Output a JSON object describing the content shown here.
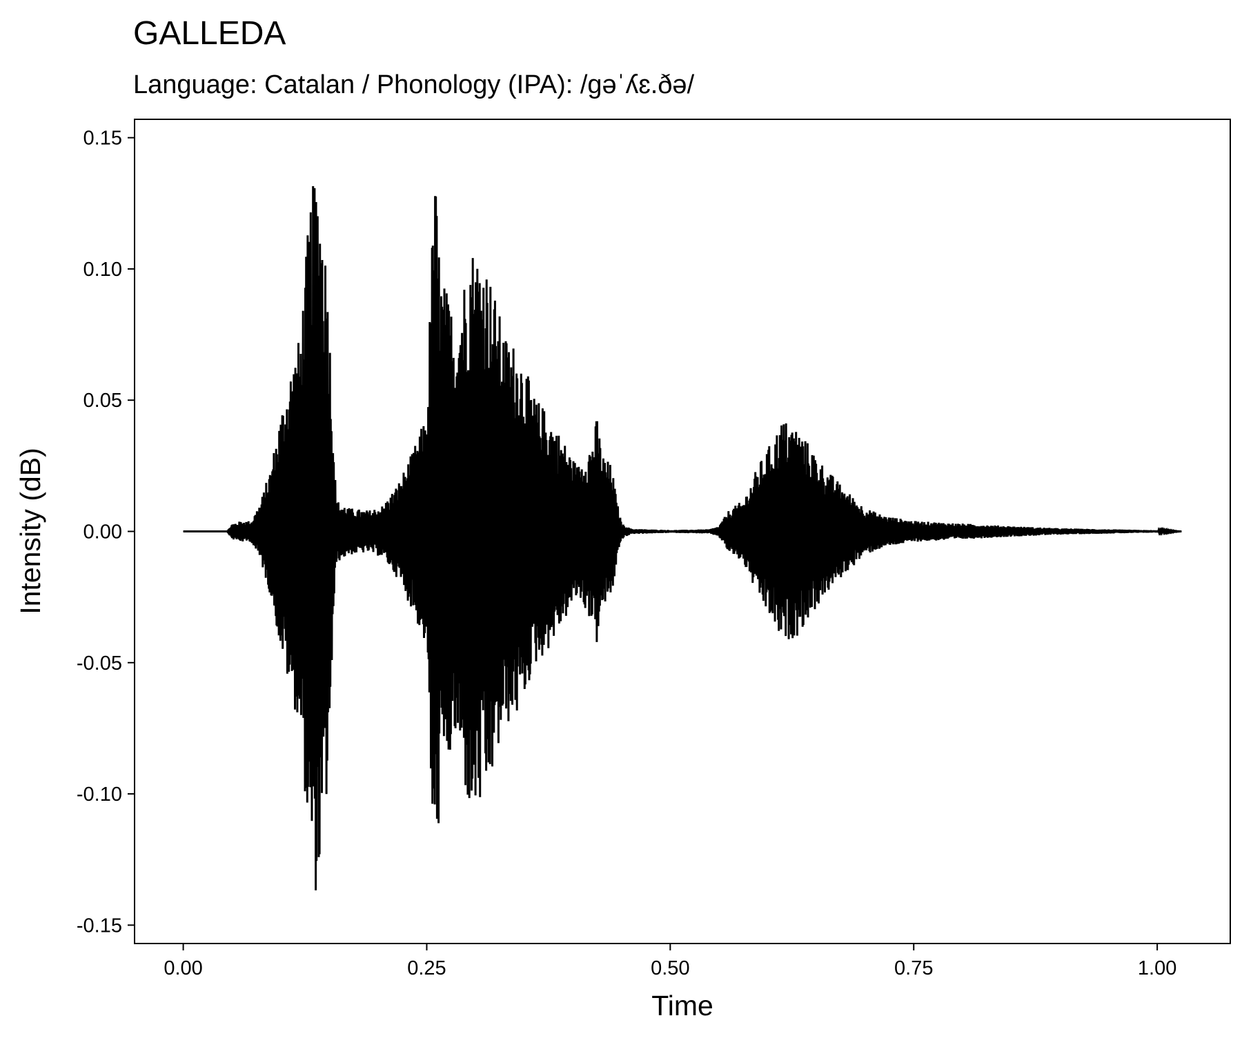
{
  "chart_data": {
    "type": "line",
    "title": "GALLEDA",
    "subtitle": "Language: Catalan / Phonology (IPA): /ɡəˈʎɛ.ðə/",
    "xlabel": "Time",
    "ylabel": "Intensity (dB)",
    "xlim": [
      -0.05,
      1.075
    ],
    "ylim": [
      -0.157,
      0.157
    ],
    "x_ticks": [
      {
        "value": 0.0,
        "label": "0.00"
      },
      {
        "value": 0.25,
        "label": "0.25"
      },
      {
        "value": 0.5,
        "label": "0.50"
      },
      {
        "value": 0.75,
        "label": "0.75"
      },
      {
        "value": 1.0,
        "label": "1.00"
      }
    ],
    "y_ticks": [
      {
        "value": 0.15,
        "label": "0.15"
      },
      {
        "value": 0.1,
        "label": "0.10"
      },
      {
        "value": 0.05,
        "label": "0.05"
      },
      {
        "value": 0.0,
        "label": "0.00"
      },
      {
        "value": -0.05,
        "label": "-0.05"
      },
      {
        "value": -0.1,
        "label": "-0.10"
      },
      {
        "value": -0.15,
        "label": "-0.15"
      }
    ],
    "grid": false,
    "legend": "none",
    "series_color": "#000000",
    "series": [
      {
        "duration": 1.025,
        "envelope": [
          [
            0.0,
            0.0
          ],
          [
            0.045,
            0.0
          ],
          [
            0.05,
            0.003
          ],
          [
            0.06,
            0.004
          ],
          [
            0.07,
            0.004
          ],
          [
            0.08,
            0.012
          ],
          [
            0.09,
            0.025
          ],
          [
            0.1,
            0.045
          ],
          [
            0.11,
            0.062
          ],
          [
            0.12,
            0.075
          ],
          [
            0.125,
            0.1
          ],
          [
            0.13,
            0.125
          ],
          [
            0.137,
            0.14
          ],
          [
            0.142,
            0.125
          ],
          [
            0.148,
            0.1
          ],
          [
            0.152,
            0.06
          ],
          [
            0.157,
            0.012
          ],
          [
            0.17,
            0.009
          ],
          [
            0.19,
            0.008
          ],
          [
            0.205,
            0.01
          ],
          [
            0.22,
            0.018
          ],
          [
            0.235,
            0.03
          ],
          [
            0.25,
            0.045
          ],
          [
            0.258,
            0.142
          ],
          [
            0.264,
            0.1
          ],
          [
            0.28,
            0.08
          ],
          [
            0.295,
            0.11
          ],
          [
            0.31,
            0.105
          ],
          [
            0.33,
            0.075
          ],
          [
            0.345,
            0.07
          ],
          [
            0.36,
            0.052
          ],
          [
            0.375,
            0.045
          ],
          [
            0.39,
            0.035
          ],
          [
            0.405,
            0.025
          ],
          [
            0.42,
            0.035
          ],
          [
            0.425,
            0.044
          ],
          [
            0.43,
            0.03
          ],
          [
            0.44,
            0.025
          ],
          [
            0.445,
            0.012
          ],
          [
            0.45,
            0.003
          ],
          [
            0.46,
            0.001
          ],
          [
            0.5,
            0.0005
          ],
          [
            0.54,
            0.0008
          ],
          [
            0.55,
            0.002
          ],
          [
            0.56,
            0.008
          ],
          [
            0.575,
            0.012
          ],
          [
            0.59,
            0.025
          ],
          [
            0.605,
            0.035
          ],
          [
            0.615,
            0.043
          ],
          [
            0.63,
            0.04
          ],
          [
            0.645,
            0.032
          ],
          [
            0.66,
            0.024
          ],
          [
            0.68,
            0.016
          ],
          [
            0.7,
            0.009
          ],
          [
            0.72,
            0.006
          ],
          [
            0.75,
            0.004
          ],
          [
            0.8,
            0.003
          ],
          [
            0.85,
            0.002
          ],
          [
            0.9,
            0.0012
          ],
          [
            0.95,
            0.0008
          ],
          [
            1.0,
            0.0004
          ],
          [
            1.025,
            0.0
          ]
        ]
      }
    ]
  }
}
